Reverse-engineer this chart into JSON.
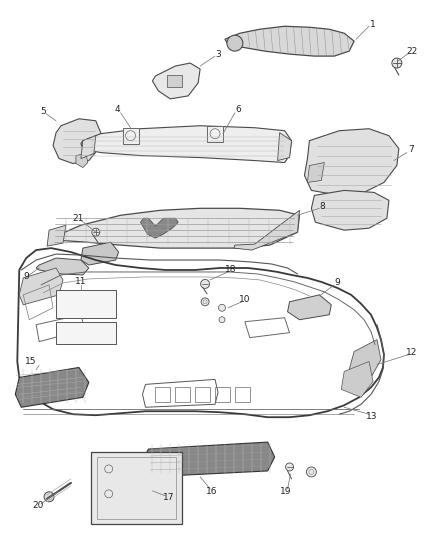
{
  "background_color": "#ffffff",
  "line_color": "#4a4a4a",
  "label_color": "#222222",
  "thin_line": "#888888",
  "figsize": [
    4.38,
    5.33
  ],
  "dpi": 100,
  "label_fs": 6.5
}
